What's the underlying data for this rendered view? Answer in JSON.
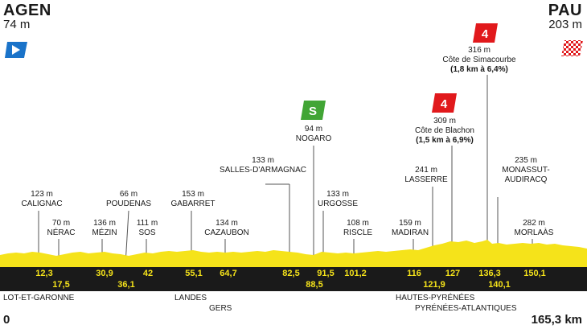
{
  "start": {
    "name": "AGEN",
    "altitude": "74 m"
  },
  "finish": {
    "name": "PAU",
    "altitude": "203 m"
  },
  "waypoints": [
    {
      "alt": "123 m",
      "name": "CALIGNAC"
    },
    {
      "alt": "70 m",
      "name": "NÉRAC"
    },
    {
      "alt": "136 m",
      "name": "MÉZIN"
    },
    {
      "alt": "66 m",
      "name": "POUDENAS"
    },
    {
      "alt": "111 m",
      "name": "SOS"
    },
    {
      "alt": "153 m",
      "name": "GABARRET"
    },
    {
      "alt": "134 m",
      "name": "CAZAUBON"
    },
    {
      "alt": "133 m",
      "name": "SALLES-D'ARMAGNAC"
    },
    {
      "alt": "94 m",
      "name": "NOGARO"
    },
    {
      "alt": "133 m",
      "name": "URGOSSE"
    },
    {
      "alt": "108 m",
      "name": "RISCLE"
    },
    {
      "alt": "159 m",
      "name": "MADIRAN"
    },
    {
      "alt": "241 m",
      "name": "LASSERRE"
    },
    {
      "alt": "309 m",
      "name": "Côte de Blachon",
      "detail": "(1,5 km à 6,9%)"
    },
    {
      "alt": "316 m",
      "name": "Côte de Simacourbe",
      "detail": "(1,8 km à 6,4%)"
    },
    {
      "alt": "235 m",
      "name": "MONASSUT-",
      "name2": "AUDIRACQ"
    },
    {
      "alt": "282 m",
      "name": "MORLAÀS"
    }
  ],
  "climb_category": "4",
  "sprint_label": "S",
  "km_upper": [
    "12,3",
    "30,9",
    "42",
    "55,1",
    "64,7",
    "82,5",
    "91,5",
    "101,2",
    "116",
    "127",
    "136,3",
    "150,1"
  ],
  "km_lower": [
    "17,5",
    "36,1",
    "88,5",
    "121,9",
    "140,1"
  ],
  "regions": [
    "LOT-ET-GARONNE",
    "LANDES",
    "GERS",
    "HAUTES-PYRÉNÉES",
    "PYRÉNÉES-ATLANTIQUES"
  ],
  "distance": {
    "start": "0",
    "end": "165,3 km"
  },
  "colors": {
    "profile": "#f5e31a",
    "band": "#1a1a1a",
    "km_text": "#f5e31a",
    "climb_badge": "#e1191c",
    "sprint_badge": "#41a535",
    "start_flag": "#1a73c9",
    "finish_flag": "#e1191c"
  },
  "icons": {
    "start": "start-flag-icon",
    "finish": "finish-checkered-flag-icon",
    "climb": "category-4-climb-icon",
    "sprint": "intermediate-sprint-icon"
  }
}
